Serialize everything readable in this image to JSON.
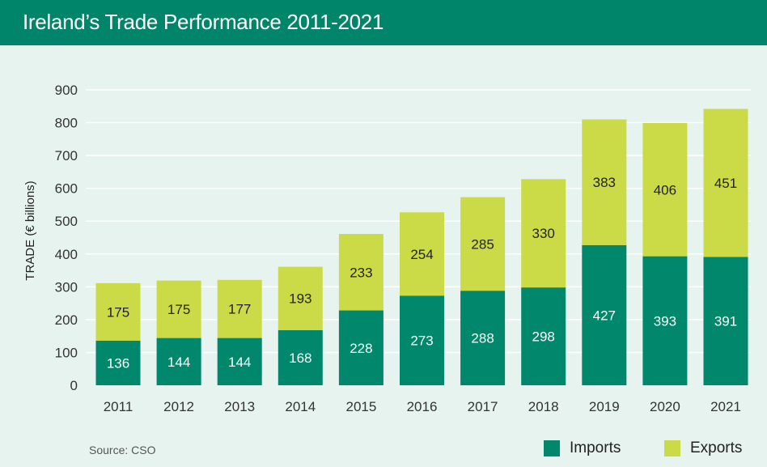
{
  "header": {
    "title": "Ireland’s Trade Performance 2011-2021"
  },
  "source": "Source: CSO",
  "colors": {
    "imports": "#00876c",
    "exports": "#cbdb47",
    "header": "#00846a",
    "background": "#e6f3ef"
  },
  "chart_data": {
    "type": "bar",
    "stacked": true,
    "title": "Ireland’s Trade Performance 2011-2021",
    "xlabel": "",
    "ylabel": "TRADE (€ billions)",
    "ylim": [
      0,
      900
    ],
    "yticks": [
      0,
      100,
      200,
      300,
      400,
      500,
      600,
      700,
      800,
      900
    ],
    "grid": true,
    "legend_position": "bottom-right",
    "categories": [
      "2011",
      "2012",
      "2013",
      "2014",
      "2015",
      "2016",
      "2017",
      "2018",
      "2019",
      "2020",
      "2021"
    ],
    "series": [
      {
        "name": "Imports",
        "values": [
          136,
          144,
          144,
          168,
          228,
          273,
          288,
          298,
          427,
          393,
          391
        ]
      },
      {
        "name": "Exports",
        "values": [
          175,
          175,
          177,
          193,
          233,
          254,
          285,
          330,
          383,
          406,
          451
        ]
      }
    ],
    "source": "Source: CSO"
  }
}
